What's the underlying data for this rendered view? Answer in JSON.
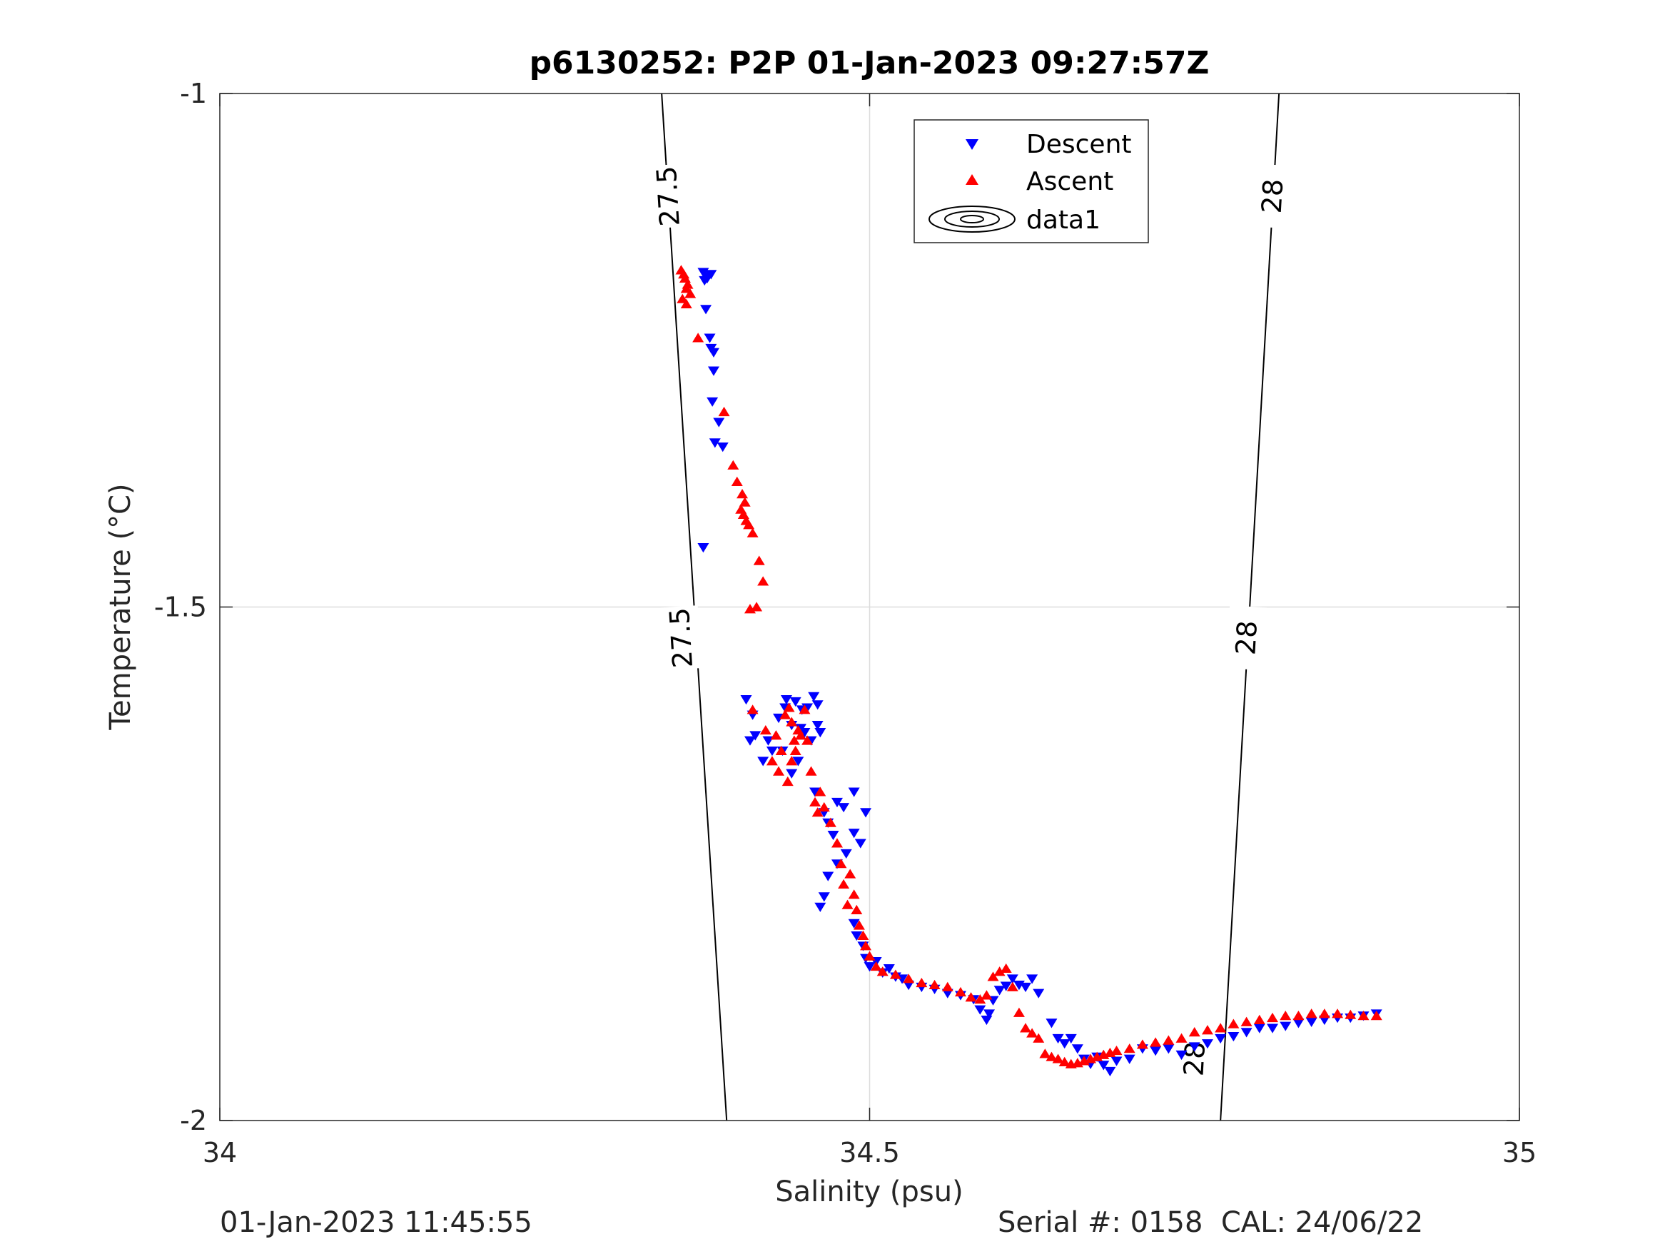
{
  "chart_data": {
    "type": "scatter",
    "title": "p6130252: P2P 01-Jan-2023 09:27:57Z",
    "xlabel": "Salinity (psu)",
    "ylabel": "Temperature (°C)",
    "xlim": [
      34,
      35
    ],
    "ylim": [
      -2,
      -1
    ],
    "x_ticks": [
      "34",
      "34.5",
      "35"
    ],
    "y_ticks": [
      "-2",
      "-1.5",
      "-1"
    ],
    "grid": true,
    "legend_position": "top-center",
    "legend": [
      "Descent",
      "Ascent",
      "data1"
    ],
    "series": [
      {
        "name": "Descent",
        "color": "#0000ff",
        "marker": "triangle-down",
        "x": [
          34.372,
          34.376,
          34.378,
          34.373,
          34.375,
          34.374,
          34.377,
          34.378,
          34.38,
          34.38,
          34.379,
          34.384,
          34.387,
          34.381,
          34.372,
          34.405,
          34.41,
          34.408,
          34.412,
          34.418,
          34.422,
          34.425,
          34.43,
          34.435,
          34.44,
          34.443,
          34.447,
          34.433,
          34.436,
          34.445,
          34.44,
          34.45,
          34.448,
          34.452,
          34.457,
          34.46,
          34.46,
          34.462,
          34.455,
          34.458,
          34.465,
          34.468,
          34.472,
          34.475,
          34.48,
          34.488,
          34.493,
          34.497,
          34.488,
          34.482,
          34.475,
          34.468,
          34.465,
          34.462,
          34.488,
          34.49,
          34.495,
          34.497,
          34.5,
          34.505,
          34.51,
          34.515,
          34.52,
          34.525,
          34.53,
          34.54,
          34.55,
          34.56,
          34.57,
          34.58,
          34.585,
          34.59,
          34.592,
          34.595,
          34.6,
          34.605,
          34.61,
          34.615,
          34.62,
          34.625,
          34.63,
          34.64,
          34.645,
          34.65,
          34.655,
          34.66,
          34.665,
          34.67,
          34.675,
          34.68,
          34.685,
          34.69,
          34.7,
          34.71,
          34.72,
          34.73,
          34.74,
          34.75,
          34.76,
          34.77,
          34.78,
          34.79,
          34.8,
          34.81,
          34.82,
          34.83,
          34.84,
          34.85,
          34.86,
          34.87,
          34.88,
          34.89
        ],
        "y": [
          -1.174,
          -1.178,
          -1.176,
          -1.182,
          -1.18,
          -1.21,
          -1.238,
          -1.248,
          -1.252,
          -1.27,
          -1.3,
          -1.32,
          -1.344,
          -1.34,
          -1.442,
          -1.59,
          -1.605,
          -1.63,
          -1.625,
          -1.65,
          -1.63,
          -1.64,
          -1.608,
          -1.598,
          -1.615,
          -1.592,
          -1.618,
          -1.64,
          -1.59,
          -1.65,
          -1.662,
          -1.622,
          -1.6,
          -1.598,
          -1.587,
          -1.595,
          -1.615,
          -1.622,
          -1.63,
          -1.68,
          -1.7,
          -1.71,
          -1.722,
          -1.69,
          -1.695,
          -1.72,
          -1.73,
          -1.7,
          -1.68,
          -1.74,
          -1.75,
          -1.762,
          -1.782,
          -1.792,
          -1.808,
          -1.82,
          -1.83,
          -1.842,
          -1.85,
          -1.845,
          -1.856,
          -1.852,
          -1.86,
          -1.862,
          -1.868,
          -1.87,
          -1.872,
          -1.876,
          -1.878,
          -1.882,
          -1.892,
          -1.902,
          -1.896,
          -1.883,
          -1.873,
          -1.869,
          -1.862,
          -1.868,
          -1.87,
          -1.862,
          -1.876,
          -1.905,
          -1.92,
          -1.925,
          -1.92,
          -1.93,
          -1.94,
          -1.945,
          -1.938,
          -1.946,
          -1.952,
          -1.942,
          -1.94,
          -1.93,
          -1.932,
          -1.93,
          -1.936,
          -1.928,
          -1.925,
          -1.92,
          -1.918,
          -1.914,
          -1.91,
          -1.91,
          -1.908,
          -1.905,
          -1.904,
          -1.902,
          -1.9,
          -1.9,
          -1.898,
          -1.896
        ]
      },
      {
        "name": "Ascent",
        "color": "#ff0000",
        "marker": "triangle-up",
        "x": [
          34.355,
          34.357,
          34.358,
          34.36,
          34.359,
          34.362,
          34.356,
          34.359,
          34.368,
          34.388,
          34.395,
          34.398,
          34.402,
          34.404,
          34.401,
          34.403,
          34.405,
          34.407,
          34.41,
          34.415,
          34.418,
          34.413,
          34.408,
          34.41,
          34.42,
          34.425,
          34.43,
          34.432,
          34.428,
          34.435,
          34.438,
          34.44,
          34.445,
          34.442,
          34.44,
          34.437,
          34.443,
          34.447,
          34.45,
          34.452,
          34.455,
          34.458,
          34.46,
          34.462,
          34.465,
          34.47,
          34.475,
          34.478,
          34.48,
          34.483,
          34.485,
          34.488,
          34.49,
          34.492,
          34.495,
          34.497,
          34.5,
          34.505,
          34.51,
          34.52,
          34.53,
          34.54,
          34.55,
          34.56,
          34.57,
          34.578,
          34.585,
          34.59,
          34.595,
          34.6,
          34.605,
          34.61,
          34.615,
          34.62,
          34.625,
          34.63,
          34.635,
          34.64,
          34.645,
          34.65,
          34.655,
          34.66,
          34.665,
          34.67,
          34.675,
          34.68,
          34.685,
          34.69,
          34.7,
          34.71,
          34.72,
          34.73,
          34.74,
          34.75,
          34.76,
          34.77,
          34.78,
          34.79,
          34.8,
          34.81,
          34.82,
          34.83,
          34.84,
          34.85,
          34.86,
          34.87,
          34.88,
          34.89
        ],
        "y": [
          -1.172,
          -1.176,
          -1.18,
          -1.186,
          -1.19,
          -1.195,
          -1.2,
          -1.205,
          -1.238,
          -1.31,
          -1.362,
          -1.378,
          -1.39,
          -1.398,
          -1.405,
          -1.41,
          -1.416,
          -1.42,
          -1.428,
          -1.455,
          -1.475,
          -1.5,
          -1.502,
          -1.6,
          -1.62,
          -1.65,
          -1.66,
          -1.64,
          -1.625,
          -1.605,
          -1.598,
          -1.612,
          -1.62,
          -1.63,
          -1.65,
          -1.67,
          -1.64,
          -1.625,
          -1.6,
          -1.63,
          -1.66,
          -1.69,
          -1.7,
          -1.68,
          -1.695,
          -1.71,
          -1.73,
          -1.75,
          -1.77,
          -1.79,
          -1.76,
          -1.78,
          -1.795,
          -1.81,
          -1.82,
          -1.83,
          -1.84,
          -1.85,
          -1.855,
          -1.858,
          -1.862,
          -1.866,
          -1.868,
          -1.87,
          -1.875,
          -1.88,
          -1.882,
          -1.878,
          -1.86,
          -1.855,
          -1.852,
          -1.87,
          -1.895,
          -1.91,
          -1.915,
          -1.92,
          -1.935,
          -1.938,
          -1.94,
          -1.943,
          -1.945,
          -1.944,
          -1.942,
          -1.94,
          -1.938,
          -1.936,
          -1.934,
          -1.932,
          -1.93,
          -1.926,
          -1.924,
          -1.922,
          -1.92,
          -1.914,
          -1.912,
          -1.91,
          -1.906,
          -1.904,
          -1.902,
          -1.9,
          -1.898,
          -1.898,
          -1.896,
          -1.896,
          -1.896,
          -1.897,
          -1.898,
          -1.898
        ]
      }
    ],
    "contours": [
      {
        "label": "27.5",
        "line": [
          [
            34.39,
            -2.0
          ],
          [
            34.34,
            -1.0
          ]
        ],
        "label_at": [
          [
            34.345,
            -1.1
          ],
          [
            34.355,
            -1.53
          ]
        ]
      },
      {
        "label": "28",
        "line": [
          [
            34.77,
            -2.0
          ],
          [
            34.815,
            -1.0
          ]
        ],
        "label_at": [
          [
            34.81,
            -1.1
          ],
          [
            34.79,
            -1.53
          ],
          [
            34.75,
            -1.94
          ]
        ]
      }
    ]
  },
  "footer": {
    "left_text": "01-Jan-2023 11:45:55",
    "right_text": "Serial #: 0158  CAL: 24/06/22"
  }
}
